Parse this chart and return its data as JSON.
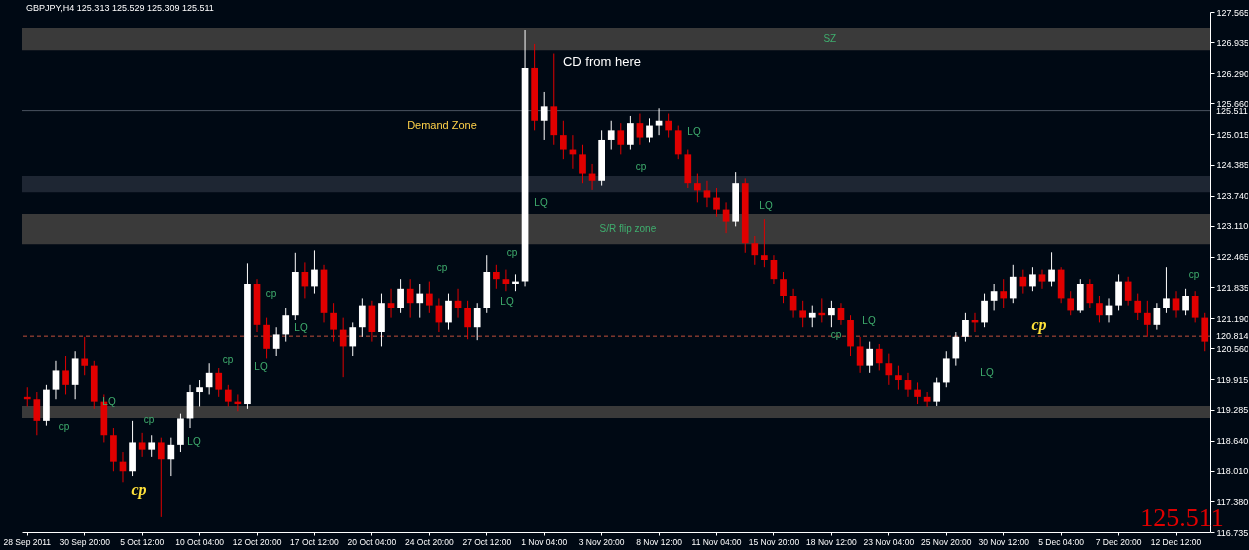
{
  "chart_data": {
    "type": "candlestick",
    "title": "GBPJPY,H4  125.313 125.529 125.309 125.511",
    "categories": [
      "28 Sep 2011",
      null,
      null,
      null,
      null,
      null,
      "30 Sep 20:00",
      null,
      null,
      null,
      null,
      null,
      "5 Oct 12:00",
      null,
      null,
      null,
      null,
      null,
      "10 Oct 04:00",
      null,
      null,
      null,
      null,
      null,
      "12 Oct 20:00",
      null,
      null,
      null,
      null,
      null,
      "17 Oct 12:00",
      null,
      null,
      null,
      null,
      null,
      "20 Oct 04:00",
      null,
      null,
      null,
      null,
      null,
      "24 Oct 20:00",
      null,
      null,
      null,
      null,
      null,
      "27 Oct 12:00",
      null,
      null,
      null,
      null,
      null,
      "1 Nov 04:00",
      null,
      null,
      null,
      null,
      null,
      "3 Nov 20:00",
      null,
      null,
      null,
      null,
      null,
      "8 Nov 12:00",
      null,
      null,
      null,
      null,
      null,
      "11 Nov 04:00",
      null,
      null,
      null,
      null,
      null,
      "15 Nov 20:00",
      null,
      null,
      null,
      null,
      null,
      "18 Nov 12:00",
      null,
      null,
      null,
      null,
      null,
      "23 Nov 04:00",
      null,
      null,
      null,
      null,
      null,
      "25 Nov 20:00",
      null,
      null,
      null,
      null,
      null,
      "30 Nov 12:00",
      null,
      null,
      null,
      null,
      null,
      "5 Dec 04:00",
      null,
      null,
      null,
      null,
      null,
      "7 Dec 20:00",
      null,
      null,
      null,
      null,
      null,
      "12 Dec 12:00",
      null,
      null,
      null
    ],
    "ohlc": [
      [
        119.55,
        119.75,
        119.35,
        119.5
      ],
      [
        119.5,
        119.65,
        118.75,
        119.05
      ],
      [
        119.05,
        119.8,
        118.95,
        119.7
      ],
      [
        119.7,
        120.3,
        119.5,
        120.1
      ],
      [
        120.1,
        120.4,
        119.6,
        119.8
      ],
      [
        119.8,
        120.5,
        119.5,
        120.35
      ],
      [
        120.35,
        120.8,
        120.0,
        120.2
      ],
      [
        120.2,
        120.3,
        119.3,
        119.45
      ],
      [
        119.45,
        119.6,
        118.6,
        118.75
      ],
      [
        118.75,
        118.9,
        118.0,
        118.2
      ],
      [
        118.2,
        118.4,
        117.77,
        118.0
      ],
      [
        118.0,
        119.05,
        117.9,
        118.6
      ],
      [
        118.6,
        118.8,
        118.3,
        118.45
      ],
      [
        118.45,
        118.75,
        118.3,
        118.6
      ],
      [
        118.6,
        118.7,
        117.05,
        118.25
      ],
      [
        118.25,
        118.7,
        117.9,
        118.55
      ],
      [
        118.55,
        119.2,
        118.4,
        119.1
      ],
      [
        119.1,
        119.8,
        118.9,
        119.65
      ],
      [
        119.65,
        119.9,
        119.35,
        119.75
      ],
      [
        119.75,
        120.25,
        119.6,
        120.05
      ],
      [
        120.05,
        120.15,
        119.55,
        119.7
      ],
      [
        119.7,
        119.8,
        119.35,
        119.45
      ],
      [
        119.45,
        119.6,
        119.25,
        119.4
      ],
      [
        119.4,
        122.33,
        119.3,
        121.9
      ],
      [
        121.9,
        122.0,
        120.9,
        121.05
      ],
      [
        121.05,
        121.2,
        120.35,
        120.55
      ],
      [
        120.55,
        121.0,
        120.4,
        120.85
      ],
      [
        120.85,
        121.4,
        120.7,
        121.25
      ],
      [
        121.25,
        122.55,
        121.15,
        122.15
      ],
      [
        122.15,
        122.35,
        121.6,
        121.85
      ],
      [
        121.85,
        122.6,
        121.7,
        122.2
      ],
      [
        122.2,
        122.3,
        121.1,
        121.3
      ],
      [
        121.3,
        121.5,
        120.7,
        120.95
      ],
      [
        120.95,
        121.2,
        119.96,
        120.6
      ],
      [
        120.6,
        121.1,
        120.4,
        121.0
      ],
      [
        121.0,
        121.6,
        120.8,
        121.45
      ],
      [
        121.45,
        121.55,
        120.7,
        120.9
      ],
      [
        120.9,
        121.7,
        120.6,
        121.5
      ],
      [
        121.5,
        121.8,
        121.2,
        121.4
      ],
      [
        121.4,
        122.0,
        121.3,
        121.8
      ],
      [
        121.8,
        122.0,
        121.2,
        121.5
      ],
      [
        121.5,
        121.9,
        121.2,
        121.7
      ],
      [
        121.7,
        121.95,
        121.3,
        121.45
      ],
      [
        121.45,
        121.6,
        120.9,
        121.1
      ],
      [
        121.1,
        121.7,
        120.95,
        121.55
      ],
      [
        121.55,
        121.8,
        121.2,
        121.4
      ],
      [
        121.4,
        121.55,
        120.75,
        121.0
      ],
      [
        121.0,
        121.5,
        120.73,
        121.4
      ],
      [
        121.4,
        122.5,
        121.3,
        122.15
      ],
      [
        122.15,
        122.3,
        121.8,
        122.0
      ],
      [
        122.0,
        122.2,
        121.75,
        121.9
      ],
      [
        121.9,
        122.1,
        121.75,
        121.95
      ],
      [
        121.95,
        127.19,
        121.85,
        126.4
      ],
      [
        126.4,
        126.9,
        125.1,
        125.3
      ],
      [
        125.3,
        125.9,
        124.9,
        125.6
      ],
      [
        125.6,
        126.7,
        124.8,
        125.0
      ],
      [
        125.0,
        125.3,
        124.5,
        124.7
      ],
      [
        124.7,
        125.0,
        124.3,
        124.6
      ],
      [
        124.6,
        124.8,
        124.0,
        124.2
      ],
      [
        124.2,
        124.4,
        123.86,
        124.05
      ],
      [
        124.05,
        125.1,
        123.95,
        124.9
      ],
      [
        124.9,
        125.3,
        124.7,
        125.1
      ],
      [
        125.1,
        125.25,
        124.6,
        124.8
      ],
      [
        124.8,
        125.4,
        124.7,
        125.25
      ],
      [
        125.25,
        125.45,
        124.8,
        124.95
      ],
      [
        124.95,
        125.35,
        124.85,
        125.2
      ],
      [
        125.2,
        125.56,
        125.0,
        125.3
      ],
      [
        125.3,
        125.45,
        124.95,
        125.1
      ],
      [
        125.1,
        125.2,
        124.5,
        124.6
      ],
      [
        124.6,
        124.7,
        123.9,
        124.0
      ],
      [
        124.0,
        124.2,
        123.6,
        123.85
      ],
      [
        123.85,
        124.05,
        123.5,
        123.7
      ],
      [
        123.7,
        123.9,
        123.3,
        123.45
      ],
      [
        123.45,
        123.6,
        122.96,
        123.2
      ],
      [
        123.2,
        124.23,
        123.1,
        124.0
      ],
      [
        124.0,
        124.1,
        122.55,
        122.75
      ],
      [
        122.75,
        122.9,
        122.3,
        122.5
      ],
      [
        122.5,
        123.25,
        122.25,
        122.4
      ],
      [
        122.4,
        122.5,
        121.9,
        122.0
      ],
      [
        122.0,
        122.15,
        121.5,
        121.65
      ],
      [
        121.65,
        121.8,
        121.2,
        121.35
      ],
      [
        121.35,
        121.55,
        121.0,
        121.2
      ],
      [
        121.2,
        121.45,
        121.0,
        121.3
      ],
      [
        121.3,
        121.6,
        121.1,
        121.25
      ],
      [
        121.25,
        121.55,
        121.0,
        121.4
      ],
      [
        121.4,
        121.5,
        121.05,
        121.15
      ],
      [
        121.15,
        121.25,
        120.4,
        120.6
      ],
      [
        120.6,
        120.8,
        120.05,
        120.2
      ],
      [
        120.2,
        120.7,
        120.05,
        120.55
      ],
      [
        120.55,
        120.65,
        120.1,
        120.25
      ],
      [
        120.25,
        120.45,
        119.8,
        120.0
      ],
      [
        120.0,
        120.2,
        119.7,
        119.9
      ],
      [
        119.9,
        120.05,
        119.55,
        119.7
      ],
      [
        119.7,
        119.85,
        119.4,
        119.55
      ],
      [
        119.55,
        119.65,
        119.34,
        119.45
      ],
      [
        119.45,
        119.95,
        119.36,
        119.85
      ],
      [
        119.85,
        120.5,
        119.75,
        120.35
      ],
      [
        120.35,
        120.9,
        120.2,
        120.8
      ],
      [
        120.8,
        121.3,
        120.7,
        121.15
      ],
      [
        121.15,
        121.3,
        120.9,
        121.1
      ],
      [
        121.1,
        121.7,
        121.0,
        121.55
      ],
      [
        121.55,
        121.9,
        121.35,
        121.75
      ],
      [
        121.75,
        122.0,
        121.4,
        121.6
      ],
      [
        121.6,
        122.3,
        121.5,
        122.05
      ],
      [
        122.05,
        122.2,
        121.7,
        121.85
      ],
      [
        121.85,
        122.25,
        121.75,
        122.1
      ],
      [
        122.1,
        122.2,
        121.8,
        121.95
      ],
      [
        121.95,
        122.56,
        121.85,
        122.2
      ],
      [
        122.2,
        122.25,
        121.5,
        121.6
      ],
      [
        121.6,
        121.75,
        121.25,
        121.35
      ],
      [
        121.35,
        122.0,
        121.3,
        121.9
      ],
      [
        121.9,
        122.0,
        121.4,
        121.5
      ],
      [
        121.5,
        121.65,
        121.1,
        121.25
      ],
      [
        121.25,
        121.6,
        121.1,
        121.45
      ],
      [
        121.45,
        122.1,
        121.35,
        121.95
      ],
      [
        121.95,
        122.05,
        121.45,
        121.55
      ],
      [
        121.55,
        121.7,
        121.15,
        121.3
      ],
      [
        121.3,
        121.55,
        120.8,
        121.05
      ],
      [
        121.05,
        121.5,
        120.95,
        121.4
      ],
      [
        121.4,
        122.25,
        121.3,
        121.6
      ],
      [
        121.6,
        121.75,
        121.2,
        121.35
      ],
      [
        121.35,
        121.8,
        121.25,
        121.65
      ],
      [
        121.65,
        121.75,
        121.1,
        121.2
      ],
      [
        121.2,
        121.3,
        120.5,
        120.7
      ]
    ],
    "ylim": [
      116.735,
      127.565
    ],
    "yticks": [
      116.735,
      {
        "value": 117.38,
        "label": "117.380"
      },
      {
        "value": 118.01,
        "label": "118.010"
      },
      {
        "value": 118.64,
        "label": "118.640"
      },
      119.285,
      119.915,
      {
        "value": 120.56,
        "label": "120.560"
      },
      {
        "value": 121.19,
        "label": "121.190"
      },
      121.835,
      122.465,
      {
        "value": 123.11,
        "label": "123.110"
      },
      {
        "value": 123.74,
        "label": "123.740"
      },
      124.385,
      125.015,
      {
        "value": 125.66,
        "label": "125.660"
      },
      {
        "value": 126.29,
        "label": "126.290"
      },
      126.935,
      127.565
    ],
    "ref_lines": [
      {
        "axis": "y",
        "value": 125.511,
        "label": "125.511",
        "color": "#4a5260",
        "line_style": "solid"
      },
      {
        "axis": "y",
        "value": 120.814,
        "label": "120.814",
        "color": "#c0503c",
        "line_style": "dashed"
      }
    ],
    "bands": [
      {
        "axis": "y",
        "from": 126.77,
        "to": 127.23,
        "label": "SZ",
        "color": "#3a3a3a"
      },
      {
        "axis": "y",
        "from": 122.73,
        "to": 123.36,
        "label": "S/R flip zone",
        "color": "#3a3a3a"
      },
      {
        "axis": "y",
        "from": 119.11,
        "to": 119.36,
        "label": null,
        "color": "#3a3a3a"
      },
      {
        "axis": "y",
        "from": 123.81,
        "to": 124.15,
        "label": null,
        "color": "#1e2633"
      }
    ],
    "annotations": [
      "Demand Zone",
      "CD from here",
      "125.511",
      "cp",
      "LQ",
      "cp",
      "LQ",
      "cp",
      "cp",
      "LQ",
      "LQ",
      "cp",
      "cp",
      "cp",
      "LQ",
      "LQ",
      "cp",
      "LQ",
      "LQ",
      "LQ",
      "cp",
      "LQ",
      "cp",
      "cp"
    ]
  }
}
